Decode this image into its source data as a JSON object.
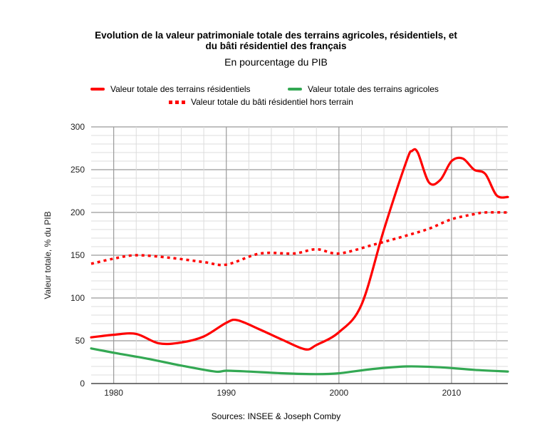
{
  "chart_data": {
    "type": "line",
    "title_line1": "Evolution de la valeur patrimoniale totale des terrains agricoles, résidentiels, et",
    "title_line2": "du bâti résidentiel des français",
    "subtitle": "En pourcentage du PIB",
    "xlabel": "",
    "ylabel": "Valeur totale, % du PIB",
    "source": "Sources: INSEE & Joseph Comby",
    "xlim": [
      1978,
      2015
    ],
    "ylim": [
      0,
      300
    ],
    "xticks": [
      1980,
      1990,
      2000,
      2010
    ],
    "yticks": [
      0,
      50,
      100,
      150,
      200,
      250,
      300
    ],
    "grid": true,
    "legend_position": "top",
    "series": [
      {
        "name": "Valeur totale des terrains résidentiels",
        "color": "#ff0000",
        "style": "solid",
        "x": [
          1978,
          1980,
          1982,
          1984,
          1986,
          1988,
          1990,
          1991,
          1993,
          1995,
          1997,
          1998,
          2000,
          2002,
          2004,
          2006,
          2006.5,
          2007,
          2008,
          2009,
          2010,
          2011,
          2012,
          2013,
          2014,
          2015
        ],
        "y": [
          54,
          57,
          58,
          47,
          48,
          55,
          71,
          74,
          63,
          51,
          40,
          45,
          60,
          92,
          180,
          260,
          272,
          270,
          235,
          238,
          260,
          263,
          250,
          245,
          220,
          218
        ]
      },
      {
        "name": "Valeur totale des terrains agricoles",
        "color": "#33a853",
        "style": "solid",
        "x": [
          1978,
          1980,
          1983,
          1986,
          1989,
          1990,
          1992,
          1995,
          1998,
          2000,
          2003,
          2006,
          2009,
          2012,
          2015
        ],
        "y": [
          41,
          36,
          29,
          21,
          14,
          15,
          14,
          12,
          11,
          12,
          17,
          20,
          19,
          16,
          14
        ]
      },
      {
        "name": "Valeur totale du bâti résidentiel hors terrain",
        "color": "#ff0000",
        "style": "dotted",
        "x": [
          1978,
          1980,
          1982,
          1985,
          1988,
          1990,
          1993,
          1996,
          1998,
          2000,
          2003,
          2006,
          2008,
          2010,
          2012,
          2013,
          2015
        ],
        "y": [
          140,
          146,
          150,
          147,
          142,
          139,
          152,
          152,
          157,
          152,
          162,
          173,
          181,
          192,
          198,
          200,
          200
        ]
      }
    ]
  }
}
